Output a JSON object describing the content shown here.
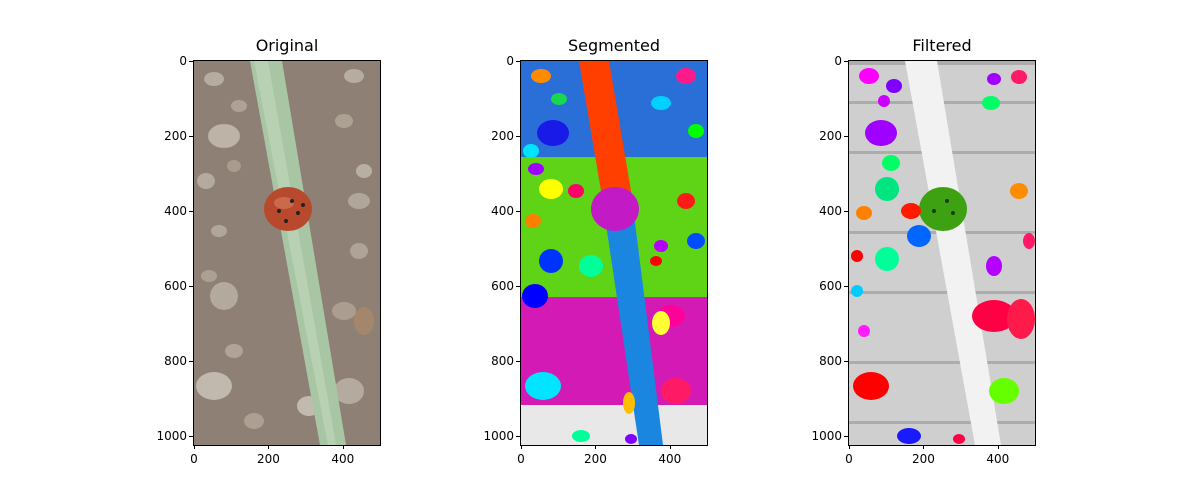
{
  "panels": [
    {
      "title": "Original",
      "left": 194
    },
    {
      "title": "Segmented",
      "left": 521
    },
    {
      "title": "Filtered",
      "left": 849
    }
  ],
  "y_ticks": [
    "0",
    "200",
    "400",
    "600",
    "800",
    "1000"
  ],
  "x_ticks": [
    "0",
    "200",
    "400"
  ],
  "y_range": [
    0,
    1024
  ],
  "x_range": [
    0,
    500
  ]
}
